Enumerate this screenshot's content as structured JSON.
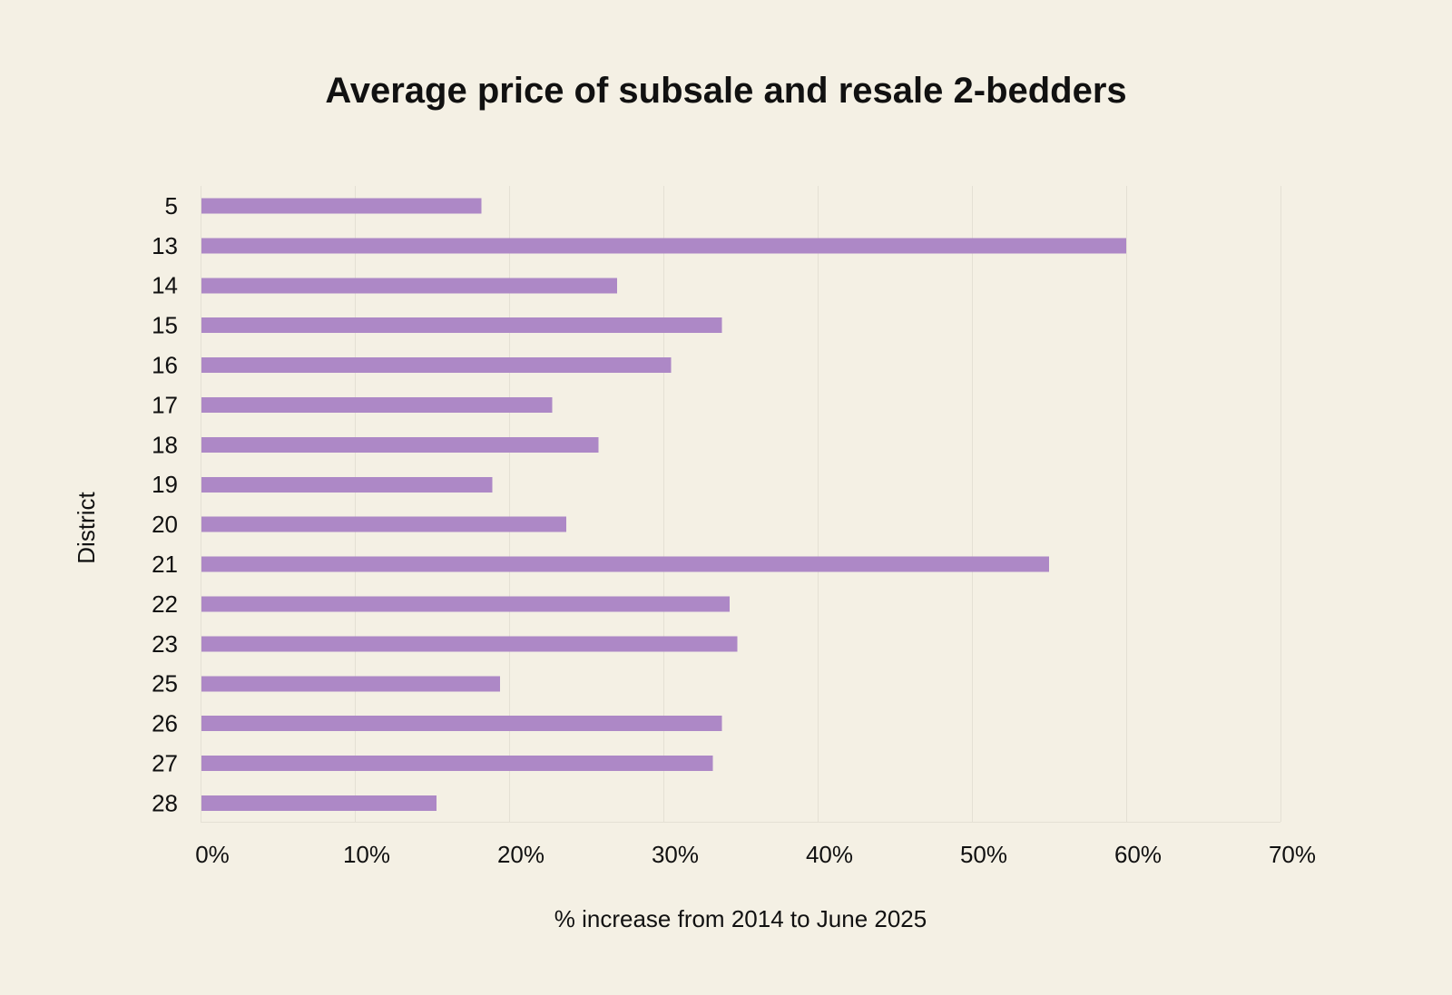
{
  "colors": {
    "background": "#f4f0e4",
    "bar": "#ad88c6",
    "grid": "#e4e0d4",
    "text": "#111111"
  },
  "chart_data": {
    "type": "bar",
    "orientation": "horizontal",
    "title": "Average price of subsale and resale 2-bedders",
    "xlabel": "% increase from 2014 to June 2025",
    "ylabel": "District",
    "categories": [
      "5",
      "13",
      "14",
      "15",
      "16",
      "17",
      "18",
      "19",
      "20",
      "21",
      "22",
      "23",
      "25",
      "26",
      "27",
      "28"
    ],
    "values": [
      18.2,
      60.0,
      27.0,
      33.8,
      30.5,
      22.8,
      25.8,
      18.9,
      23.7,
      55.0,
      34.3,
      34.8,
      19.4,
      33.8,
      33.2,
      15.3
    ],
    "xlim": [
      0,
      70
    ],
    "xticks": [
      0,
      10,
      20,
      30,
      40,
      50,
      60,
      70
    ],
    "xtick_labels": [
      "0%",
      "10%",
      "20%",
      "30%",
      "40%",
      "50%",
      "60%",
      "70%"
    ],
    "grid": true,
    "legend": "none"
  }
}
